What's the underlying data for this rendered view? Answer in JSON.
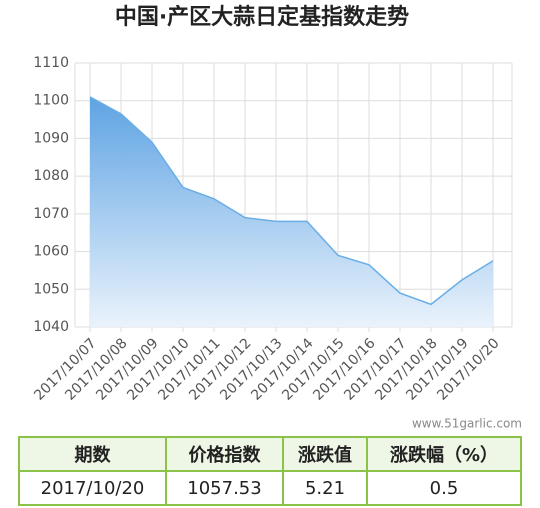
{
  "chart_data": {
    "type": "area",
    "title": "中国·产区大蒜日定基指数走势",
    "categories": [
      "2017/10/07",
      "2017/10/08",
      "2017/10/09",
      "2017/10/10",
      "2017/10/11",
      "2017/10/12",
      "2017/10/13",
      "2017/10/14",
      "2017/10/15",
      "2017/10/16",
      "2017/10/17",
      "2017/10/18",
      "2017/10/19",
      "2017/10/20"
    ],
    "values": [
      1101,
      1096.5,
      1089,
      1077,
      1074,
      1069,
      1068,
      1068,
      1059,
      1056.5,
      1049,
      1046,
      1052.5,
      1057.53
    ],
    "color": "#6aaee6",
    "ylim": [
      1040,
      1110
    ],
    "yticks": [
      1040,
      1050,
      1060,
      1070,
      1080,
      1090,
      1100,
      1110
    ],
    "grid": true
  },
  "watermark": "www.51garlic.com",
  "table": {
    "header": [
      "期数",
      "价格指数",
      "涨跌值",
      "涨跌幅（%）"
    ],
    "rows": [
      [
        "2017/10/20",
        "1057.53",
        "5.21",
        "0.5"
      ]
    ]
  }
}
